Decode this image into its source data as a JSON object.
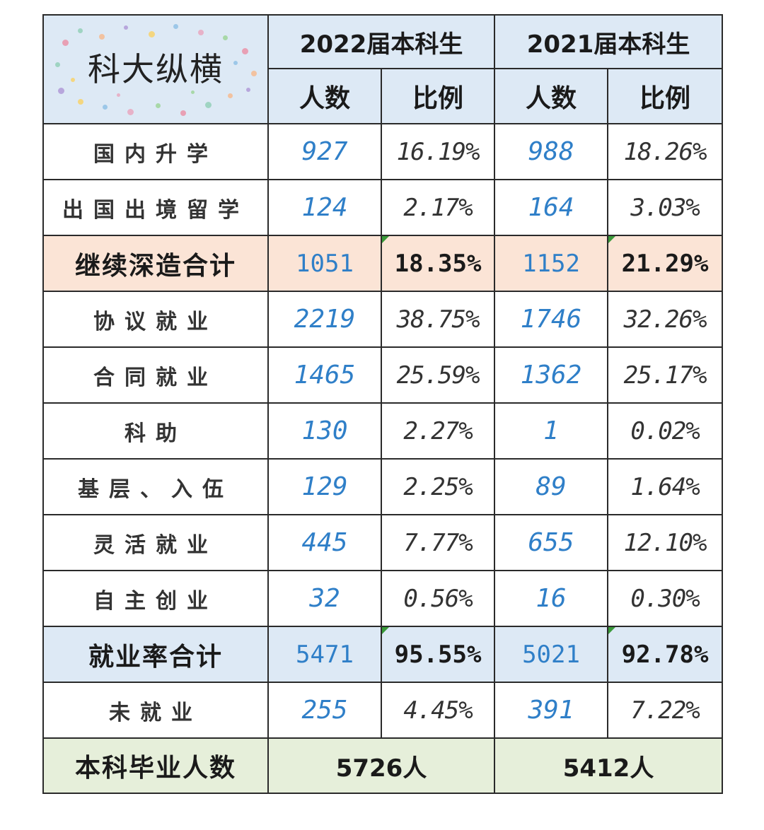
{
  "table": {
    "logo_text": "科大纵横",
    "header_2022": "2022届本科生",
    "header_2021": "2021届本科生",
    "sub_count": "人数",
    "sub_ratio": "比例",
    "rows": [
      {
        "label": "国内升学",
        "c2022": "927",
        "p2022": "16.19%",
        "c2021": "988",
        "p2021": "18.26%",
        "kind": "normal"
      },
      {
        "label": "出国出境留学",
        "c2022": "124",
        "p2022": "2.17%",
        "c2021": "164",
        "p2021": "3.03%",
        "kind": "normal"
      },
      {
        "label": "继续深造合计",
        "c2022": "1051",
        "p2022": "18.35%",
        "c2021": "1152",
        "p2021": "21.29%",
        "kind": "sum-salmon"
      },
      {
        "label": "协议就业",
        "c2022": "2219",
        "p2022": "38.75%",
        "c2021": "1746",
        "p2021": "32.26%",
        "kind": "normal"
      },
      {
        "label": "合同就业",
        "c2022": "1465",
        "p2022": "25.59%",
        "c2021": "1362",
        "p2021": "25.17%",
        "kind": "normal"
      },
      {
        "label": "科助",
        "c2022": "130",
        "p2022": "2.27%",
        "c2021": "1",
        "p2021": "0.02%",
        "kind": "normal"
      },
      {
        "label": "基层、入伍",
        "c2022": "129",
        "p2022": "2.25%",
        "c2021": "89",
        "p2021": "1.64%",
        "kind": "normal"
      },
      {
        "label": "灵活就业",
        "c2022": "445",
        "p2022": "7.77%",
        "c2021": "655",
        "p2021": "12.10%",
        "kind": "normal"
      },
      {
        "label": "自主创业",
        "c2022": "32",
        "p2022": "0.56%",
        "c2021": "16",
        "p2021": "0.30%",
        "kind": "normal"
      },
      {
        "label": "就业率合计",
        "c2022": "5471",
        "p2022": "95.55%",
        "c2021": "5021",
        "p2021": "92.78%",
        "kind": "sum-blue"
      },
      {
        "label": "未就业",
        "c2022": "255",
        "p2022": "4.45%",
        "c2021": "391",
        "p2021": "7.22%",
        "kind": "normal"
      }
    ],
    "total_label": "本科毕业人数",
    "total_2022": "5726人",
    "total_2021": "5412人"
  },
  "colors": {
    "header_bg": "#dde9f5",
    "salmon_row_bg": "#fbe4d6",
    "blue_row_bg": "#dde9f5",
    "total_row_bg": "#e6efda",
    "count_text": "#2f7fc8"
  }
}
